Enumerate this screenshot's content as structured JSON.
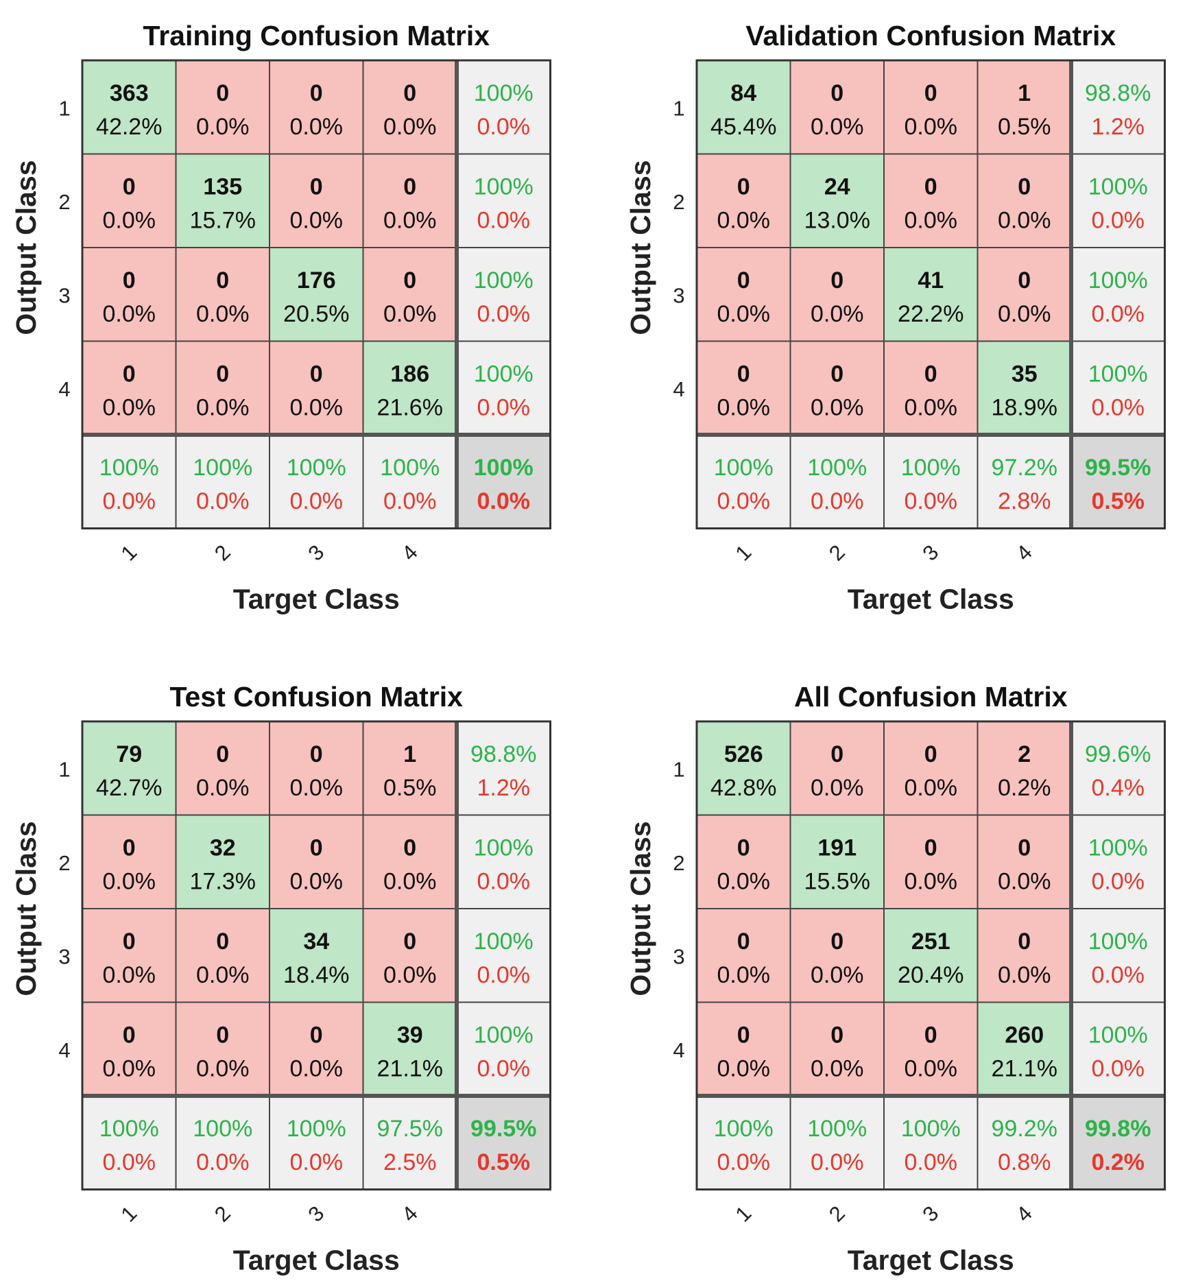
{
  "chart_data": [
    {
      "type": "table",
      "title": "Training Confusion Matrix",
      "xlabel": "Target Class",
      "ylabel": "Output Class",
      "x_ticks": [
        "1",
        "2",
        "3",
        "4"
      ],
      "y_ticks": [
        "1",
        "2",
        "3",
        "4"
      ],
      "counts": [
        [
          363,
          0,
          0,
          0
        ],
        [
          0,
          135,
          0,
          0
        ],
        [
          0,
          0,
          176,
          0
        ],
        [
          0,
          0,
          0,
          186
        ]
      ],
      "percents": [
        [
          "42.2%",
          "0.0%",
          "0.0%",
          "0.0%"
        ],
        [
          "0.0%",
          "15.7%",
          "0.0%",
          "0.0%"
        ],
        [
          "0.0%",
          "0.0%",
          "20.5%",
          "0.0%"
        ],
        [
          "0.0%",
          "0.0%",
          "0.0%",
          "21.6%"
        ]
      ],
      "row_summary": [
        [
          "100%",
          "0.0%"
        ],
        [
          "100%",
          "0.0%"
        ],
        [
          "100%",
          "0.0%"
        ],
        [
          "100%",
          "0.0%"
        ]
      ],
      "col_summary": [
        [
          "100%",
          "0.0%"
        ],
        [
          "100%",
          "0.0%"
        ],
        [
          "100%",
          "0.0%"
        ],
        [
          "100%",
          "0.0%"
        ]
      ],
      "overall": [
        "100%",
        "0.0%"
      ]
    },
    {
      "type": "table",
      "title": "Validation Confusion Matrix",
      "xlabel": "Target Class",
      "ylabel": "Output Class",
      "x_ticks": [
        "1",
        "2",
        "3",
        "4"
      ],
      "y_ticks": [
        "1",
        "2",
        "3",
        "4"
      ],
      "counts": [
        [
          84,
          0,
          0,
          1
        ],
        [
          0,
          24,
          0,
          0
        ],
        [
          0,
          0,
          41,
          0
        ],
        [
          0,
          0,
          0,
          35
        ]
      ],
      "percents": [
        [
          "45.4%",
          "0.0%",
          "0.0%",
          "0.5%"
        ],
        [
          "0.0%",
          "13.0%",
          "0.0%",
          "0.0%"
        ],
        [
          "0.0%",
          "0.0%",
          "22.2%",
          "0.0%"
        ],
        [
          "0.0%",
          "0.0%",
          "0.0%",
          "18.9%"
        ]
      ],
      "row_summary": [
        [
          "98.8%",
          "1.2%"
        ],
        [
          "100%",
          "0.0%"
        ],
        [
          "100%",
          "0.0%"
        ],
        [
          "100%",
          "0.0%"
        ]
      ],
      "col_summary": [
        [
          "100%",
          "0.0%"
        ],
        [
          "100%",
          "0.0%"
        ],
        [
          "100%",
          "0.0%"
        ],
        [
          "97.2%",
          "2.8%"
        ]
      ],
      "overall": [
        "99.5%",
        "0.5%"
      ]
    },
    {
      "type": "table",
      "title": "Test Confusion Matrix",
      "xlabel": "Target Class",
      "ylabel": "Output Class",
      "x_ticks": [
        "1",
        "2",
        "3",
        "4"
      ],
      "y_ticks": [
        "1",
        "2",
        "3",
        "4"
      ],
      "counts": [
        [
          79,
          0,
          0,
          1
        ],
        [
          0,
          32,
          0,
          0
        ],
        [
          0,
          0,
          34,
          0
        ],
        [
          0,
          0,
          0,
          39
        ]
      ],
      "percents": [
        [
          "42.7%",
          "0.0%",
          "0.0%",
          "0.5%"
        ],
        [
          "0.0%",
          "17.3%",
          "0.0%",
          "0.0%"
        ],
        [
          "0.0%",
          "0.0%",
          "18.4%",
          "0.0%"
        ],
        [
          "0.0%",
          "0.0%",
          "0.0%",
          "21.1%"
        ]
      ],
      "row_summary": [
        [
          "98.8%",
          "1.2%"
        ],
        [
          "100%",
          "0.0%"
        ],
        [
          "100%",
          "0.0%"
        ],
        [
          "100%",
          "0.0%"
        ]
      ],
      "col_summary": [
        [
          "100%",
          "0.0%"
        ],
        [
          "100%",
          "0.0%"
        ],
        [
          "100%",
          "0.0%"
        ],
        [
          "97.5%",
          "2.5%"
        ]
      ],
      "overall": [
        "99.5%",
        "0.5%"
      ]
    },
    {
      "type": "table",
      "title": "All Confusion Matrix",
      "xlabel": "Target Class",
      "ylabel": "Output Class",
      "x_ticks": [
        "1",
        "2",
        "3",
        "4"
      ],
      "y_ticks": [
        "1",
        "2",
        "3",
        "4"
      ],
      "counts": [
        [
          526,
          0,
          0,
          2
        ],
        [
          0,
          191,
          0,
          0
        ],
        [
          0,
          0,
          251,
          0
        ],
        [
          0,
          0,
          0,
          260
        ]
      ],
      "percents": [
        [
          "42.8%",
          "0.0%",
          "0.0%",
          "0.2%"
        ],
        [
          "0.0%",
          "15.5%",
          "0.0%",
          "0.0%"
        ],
        [
          "0.0%",
          "0.0%",
          "20.4%",
          "0.0%"
        ],
        [
          "0.0%",
          "0.0%",
          "0.0%",
          "21.1%"
        ]
      ],
      "row_summary": [
        [
          "99.6%",
          "0.4%"
        ],
        [
          "100%",
          "0.0%"
        ],
        [
          "100%",
          "0.0%"
        ],
        [
          "100%",
          "0.0%"
        ]
      ],
      "col_summary": [
        [
          "100%",
          "0.0%"
        ],
        [
          "100%",
          "0.0%"
        ],
        [
          "100%",
          "0.0%"
        ],
        [
          "99.2%",
          "0.8%"
        ]
      ],
      "overall": [
        "99.8%",
        "0.2%"
      ]
    }
  ],
  "colors": {
    "correct_fill": "#bfe6c6",
    "wrong_fill": "#f7c1be",
    "summary_fill": "#f0f0f0",
    "overall_fill": "#d8d8d8",
    "green_text": "#2db34a",
    "red_text": "#e8372c",
    "grid_line": "#444444",
    "text": "#111111"
  }
}
